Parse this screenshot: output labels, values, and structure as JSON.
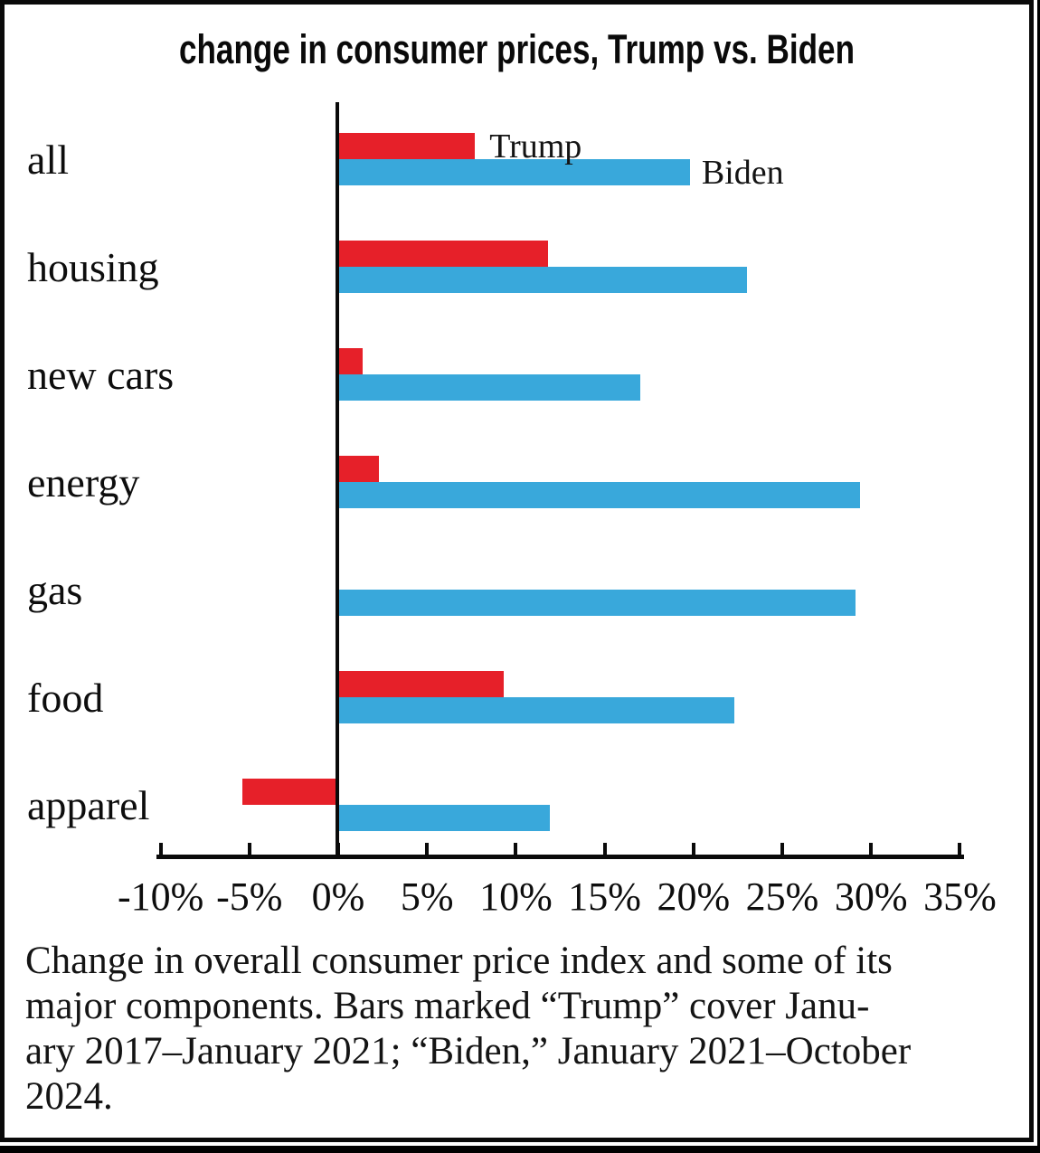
{
  "title": "change in consumer prices, Trump vs. Biden",
  "colors": {
    "trump_bar": "#e62029",
    "biden_bar": "#39a8db",
    "axis": "#0a0a0a",
    "text": "#0d0d0d",
    "frame_border": "#0a0a0a",
    "background": "#ffffff"
  },
  "legend": {
    "trump_label": "Trump",
    "biden_label": "Biden"
  },
  "chart_data": {
    "type": "bar",
    "orientation": "horizontal",
    "title": "change in consumer prices, Trump vs. Biden",
    "categories": [
      "all",
      "housing",
      "new cars",
      "energy",
      "gas",
      "food",
      "apparel"
    ],
    "series": [
      {
        "name": "Trump",
        "color": "#e62029",
        "values": [
          7.7,
          11.8,
          1.4,
          2.3,
          0,
          9.3,
          -5.4
        ]
      },
      {
        "name": "Biden",
        "color": "#39a8db",
        "values": [
          19.8,
          23.0,
          17.0,
          29.4,
          29.1,
          22.3,
          11.9
        ]
      }
    ],
    "value_unit": "%",
    "xlim": [
      -10,
      35
    ],
    "x_tick_values": [
      -10,
      -5,
      0,
      5,
      10,
      15,
      20,
      25,
      30,
      35
    ],
    "x_tick_labels": [
      "-10%",
      "-5%",
      "0%",
      "5%",
      "10%",
      "15%",
      "20%",
      "25%",
      "30%",
      "35%"
    ],
    "grid": false,
    "legend_position": "labels-beside-first-row-bars"
  },
  "caption": {
    "lines": [
      "Change in overall consumer price index and some of its",
      "major components. Bars marked “Trump” cover Janu-",
      "ary 2017–January 2021; “Biden,” January 2021–October",
      "2024."
    ],
    "full_text": "Change in overall consumer price index and some of its major components. Bars marked “Trump” cover January 2017–January 2021; “Biden,” January 2021–October 2024."
  }
}
